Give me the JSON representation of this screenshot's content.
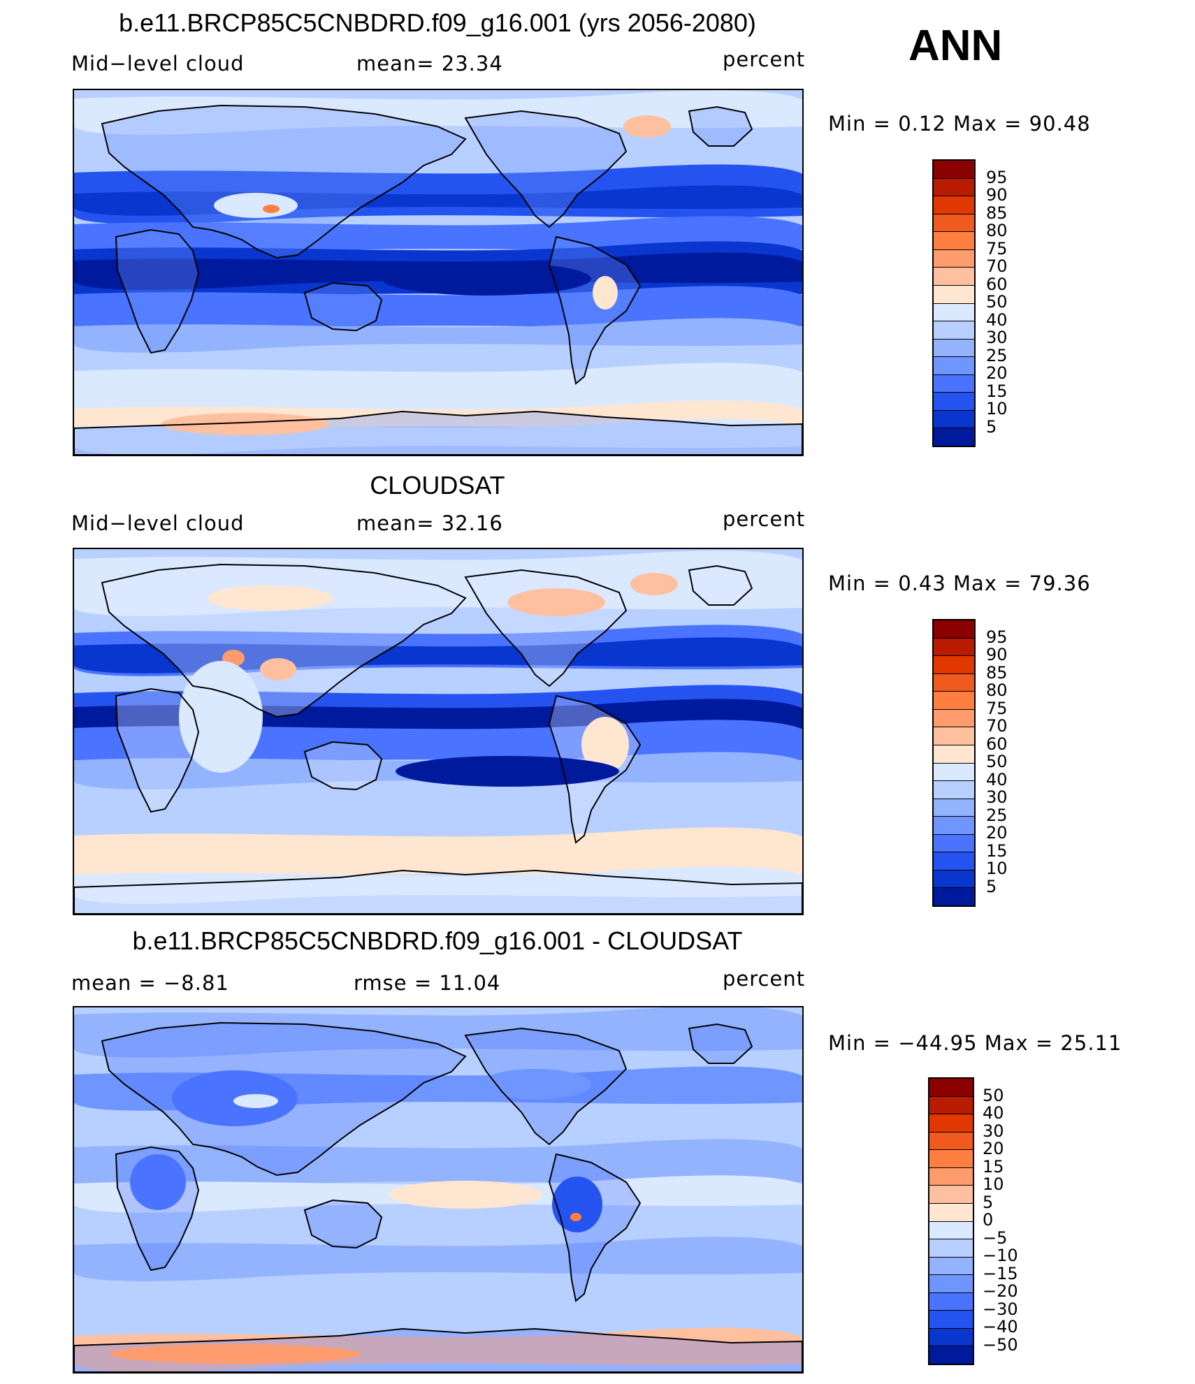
{
  "season": "ANN",
  "panels": [
    {
      "title": "b.e11.BRCP85C5CNBDRD.f09_g16.001 (yrs 2056-2080)",
      "left_label": "Mid−level cloud",
      "center_label": "mean=   23.34",
      "units": "percent",
      "minmax": "Min  =     0.12  Max  =    90.48",
      "map_fill": "model"
    },
    {
      "title": "CLOUDSAT",
      "left_label": "Mid−level cloud",
      "center_label": "mean=   32.16",
      "units": "percent",
      "minmax": "Min  =     0.43  Max  =    79.36",
      "map_fill": "obs"
    },
    {
      "title": "b.e11.BRCP85C5CNBDRD.f09_g16.001 - CLOUDSAT",
      "left_label": "mean  =    −8.81",
      "center_label": "rmse  =    11.04",
      "units": "percent",
      "minmax": "Min  =  −44.95  Max  =    25.11",
      "map_fill": "diff"
    }
  ],
  "colorbars": [
    {
      "labels": [
        "95",
        "90",
        "85",
        "80",
        "75",
        "70",
        "60",
        "50",
        "40",
        "30",
        "25",
        "20",
        "15",
        "10",
        "5"
      ],
      "colors": [
        "#8b0000",
        "#b81b00",
        "#e03800",
        "#f05a1e",
        "#ff7f40",
        "#ff9c6e",
        "#ffc0a0",
        "#ffe6d0",
        "#dbe9ff",
        "#b8d0ff",
        "#93b3ff",
        "#6f95ff",
        "#4a73ff",
        "#2453f0",
        "#0a36d0",
        "#001a9e"
      ]
    },
    {
      "labels": [
        "95",
        "90",
        "85",
        "80",
        "75",
        "70",
        "60",
        "50",
        "40",
        "30",
        "25",
        "20",
        "15",
        "10",
        "5"
      ],
      "colors": [
        "#8b0000",
        "#b81b00",
        "#e03800",
        "#f05a1e",
        "#ff7f40",
        "#ff9c6e",
        "#ffc0a0",
        "#ffe6d0",
        "#dbe9ff",
        "#b8d0ff",
        "#93b3ff",
        "#6f95ff",
        "#4a73ff",
        "#2453f0",
        "#0a36d0",
        "#001a9e"
      ]
    },
    {
      "labels": [
        "50",
        "40",
        "30",
        "20",
        "15",
        "10",
        "5",
        "0",
        "−5",
        "−10",
        "−15",
        "−20",
        "−30",
        "−40",
        "−50"
      ],
      "colors": [
        "#8b0000",
        "#b81b00",
        "#e03800",
        "#f05a1e",
        "#ff7f40",
        "#ff9c6e",
        "#ffc0a0",
        "#ffe6d0",
        "#dbe9ff",
        "#b8d0ff",
        "#93b3ff",
        "#6f95ff",
        "#4a73ff",
        "#2453f0",
        "#0a36d0",
        "#001a9e"
      ]
    }
  ]
}
